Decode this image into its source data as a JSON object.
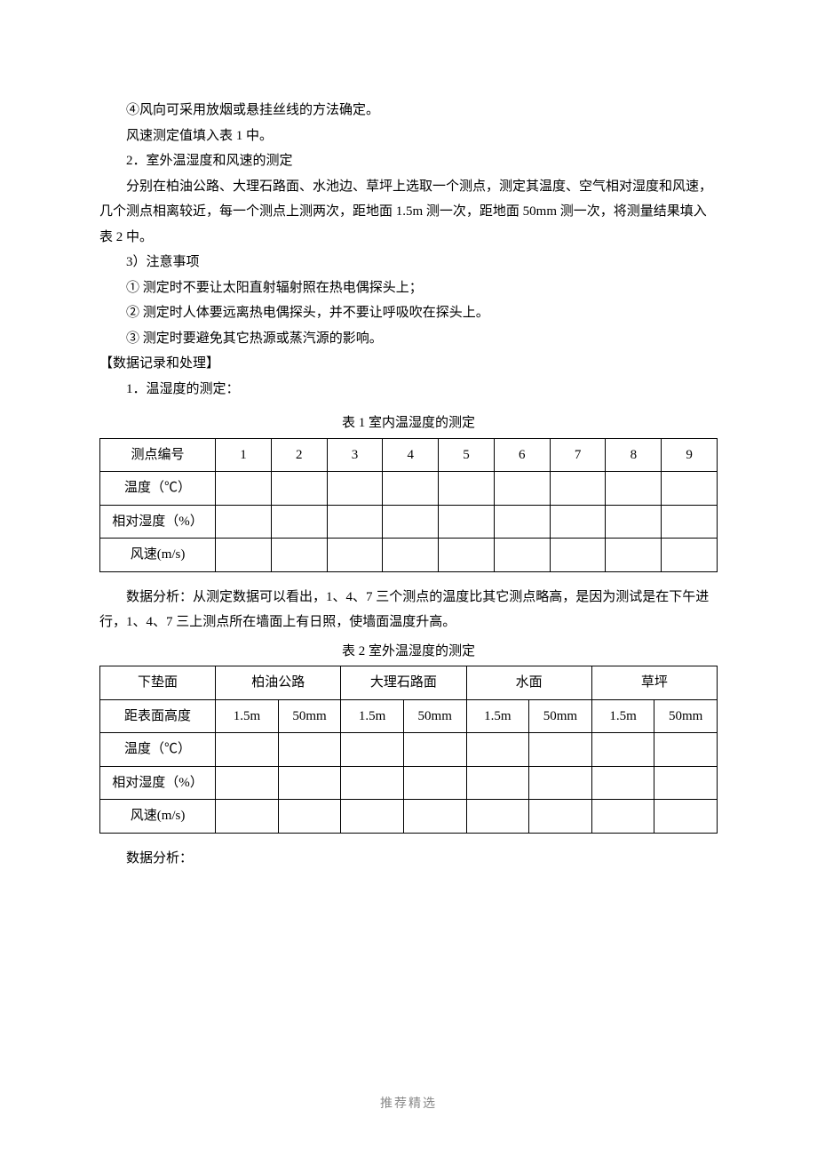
{
  "paragraphs": {
    "p4": "④风向可采用放烟或悬挂丝线的方法确定。",
    "p_fill1": "风速测定值填入表 1 中。",
    "h2": "2．室外温湿度和风速的测定",
    "p_outdoor": "分别在柏油公路、大理石路面、水池边、草坪上选取一个测点，测定其温度、空气相对湿度和风速，几个测点相离较近，每一个测点上测两次，距地面 1.5m 测一次，距地面 50mm 测一次，将测量结果填入表 2 中。",
    "h3": "3）注意事项",
    "n1": "① 测定时不要让太阳直射辐射照在热电偶探头上；",
    "n2": "② 测定时人体要远离热电偶探头，并不要让呼吸吹在探头上。",
    "n3": "③ 测定时要避免其它热源或蒸汽源的影响。",
    "data_rec": "【数据记录和处理】",
    "h1_temp": "1．温湿度的测定：",
    "analysis1": "数据分析：从测定数据可以看出，1、4、7 三个测点的温度比其它测点略高，是因为测试是在下午进行，1、4、7 三上测点所在墙面上有日照，使墙面温度升高。",
    "analysis2_label": "数据分析："
  },
  "table1": {
    "title": "表 1 室内温湿度的测定",
    "row_labels": [
      "测点编号",
      "温度（℃）",
      "相对湿度（%）",
      "风速(m/s)"
    ],
    "col_headers": [
      "1",
      "2",
      "3",
      "4",
      "5",
      "6",
      "7",
      "8",
      "9"
    ]
  },
  "table2": {
    "title": "表 2 室外温湿度的测定",
    "header_row": [
      "下垫面",
      "柏油公路",
      "大理石路面",
      "水面",
      "草坪"
    ],
    "height_row_label": "距表面高度",
    "heights": [
      "1.5m",
      "50mm",
      "1.5m",
      "50mm",
      "1.5m",
      "50mm",
      "1.5m",
      "50mm"
    ],
    "data_rows": [
      "温度（℃）",
      "相对湿度（%）",
      "风速(m/s)"
    ]
  },
  "footer": "推荐精选"
}
